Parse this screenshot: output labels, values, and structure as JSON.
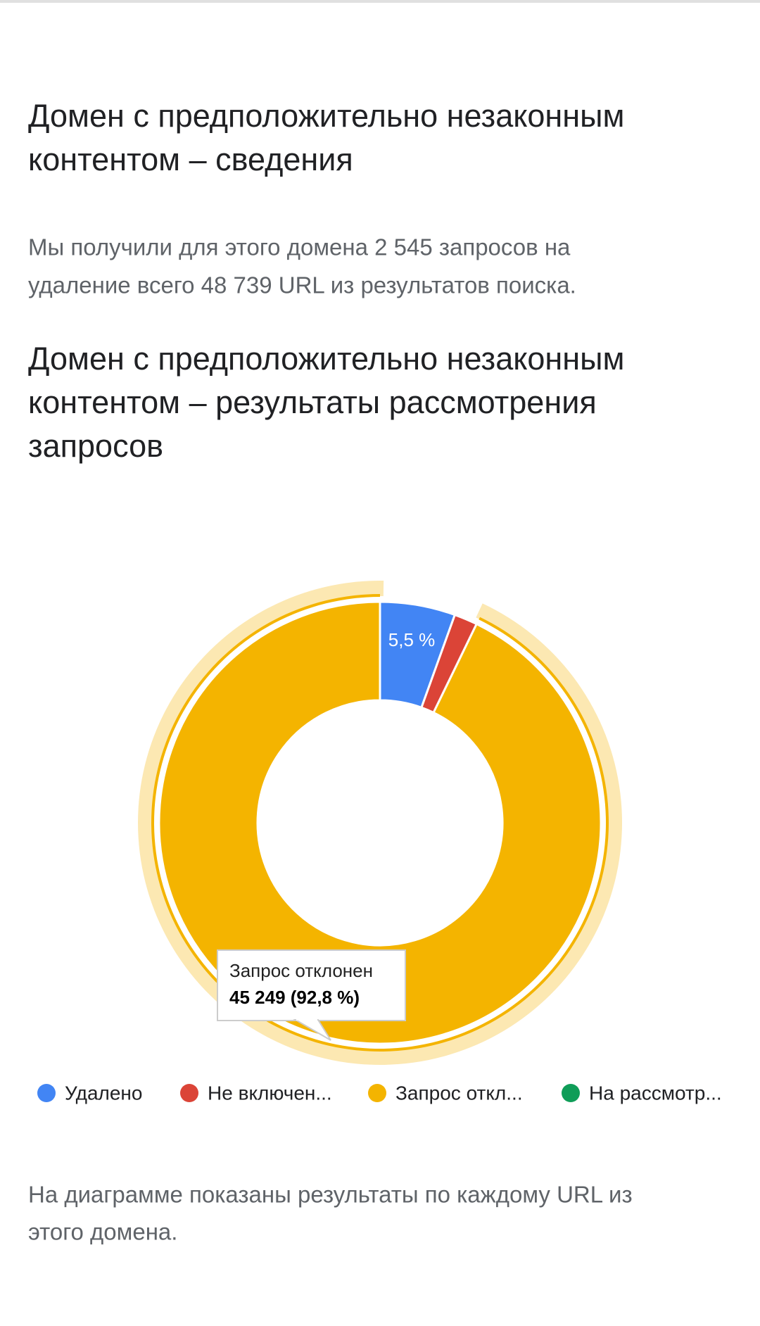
{
  "heading_lines": [
    "Домен с предположительно незаконным",
    "контентом – сведения"
  ],
  "summary_lines": [
    "Мы получили для этого домена 2 545 запросов на",
    "удаление всего 48 739 URL из результатов поиска."
  ],
  "chart_data": {
    "type": "pie",
    "title_lines": [
      "Домен с предположительно незаконным",
      "контентом – результаты рассмотрения",
      "запросов"
    ],
    "categories": [
      "Удалено",
      "Не включен...",
      "Запрос откл...",
      "На рассмотр..."
    ],
    "values": [
      5.5,
      1.7,
      92.8,
      0
    ],
    "value_labels": [
      "5,5 %",
      null,
      null,
      null
    ],
    "colors": [
      "#4285f4",
      "#db4437",
      "#f4b400",
      "#0f9d58"
    ],
    "donut": true,
    "tooltip": {
      "title": "Запрос отклонен",
      "text": "45 249 (92,8 %)"
    }
  },
  "footnote_lines": [
    "На диаграмме показаны результаты по каждому URL из",
    "этого домена."
  ]
}
